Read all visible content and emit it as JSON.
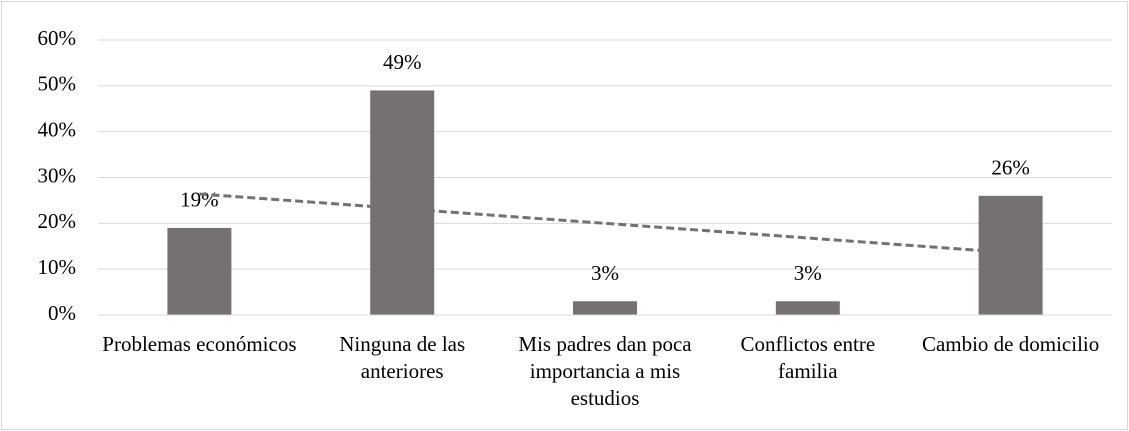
{
  "chart_data": {
    "type": "bar",
    "categories": [
      "Problemas económicos",
      "Ninguna de las anteriores",
      "Mis padres dan poca importancia a mis estudios",
      "Conflictos entre familia",
      "Cambio de domicilio"
    ],
    "values": [
      19,
      49,
      3,
      3,
      26
    ],
    "value_labels": [
      "19%",
      "49%",
      "3%",
      "3%",
      "26%"
    ],
    "color": "#767171",
    "trendline": "linear",
    "trendline_color": "#767171",
    "ylim": [
      0,
      60
    ],
    "yticks": [
      {
        "value": 0,
        "label": "0%"
      },
      {
        "value": 10,
        "label": "10%"
      },
      {
        "value": 20,
        "label": "20%"
      },
      {
        "value": 30,
        "label": "30%"
      },
      {
        "value": 40,
        "label": "40%"
      },
      {
        "value": 50,
        "label": "50%"
      },
      {
        "value": 60,
        "label": "60%"
      }
    ],
    "grid": true
  }
}
